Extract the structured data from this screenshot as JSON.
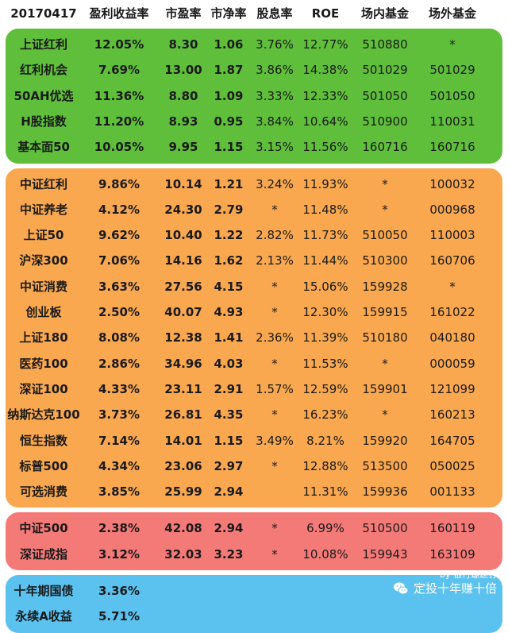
{
  "header": [
    "20170417",
    "盈利收益率",
    "市盈率",
    "市净率",
    "股息率",
    "ROE",
    "场内基金",
    "场外基金"
  ],
  "groups": [
    {
      "color": "#5fbf3a",
      "rows": [
        [
          "上证红利",
          "12.05%",
          "8.30",
          "1.06",
          "3.76%",
          "12.77%",
          "510880",
          "*"
        ],
        [
          "红利机会",
          "7.69%",
          "13.00",
          "1.87",
          "3.86%",
          "14.38%",
          "501029",
          "501029"
        ],
        [
          "50AH优选",
          "11.36%",
          "8.80",
          "1.09",
          "3.33%",
          "12.33%",
          "501050",
          "501050"
        ],
        [
          "H股指数",
          "11.20%",
          "8.93",
          "0.95",
          "3.84%",
          "10.64%",
          "510900",
          "110031"
        ],
        [
          "基本面50",
          "10.05%",
          "9.95",
          "1.15",
          "3.15%",
          "11.56%",
          "160716",
          "160716"
        ]
      ]
    },
    {
      "color": "#f9a84f",
      "rows": [
        [
          "中证红利",
          "9.86%",
          "10.14",
          "1.21",
          "3.24%",
          "11.93%",
          "*",
          "100032"
        ],
        [
          "中证养老",
          "4.12%",
          "24.30",
          "2.79",
          "*",
          "11.48%",
          "*",
          "000968"
        ],
        [
          "上证50",
          "9.62%",
          "10.40",
          "1.22",
          "2.82%",
          "11.73%",
          "510050",
          "110003"
        ],
        [
          "沪深300",
          "7.06%",
          "14.16",
          "1.62",
          "2.13%",
          "11.44%",
          "510300",
          "160706"
        ],
        [
          "中证消费",
          "3.63%",
          "27.56",
          "4.15",
          "*",
          "15.06%",
          "159928",
          "*"
        ],
        [
          "创业板",
          "2.50%",
          "40.07",
          "4.93",
          "*",
          "12.30%",
          "159915",
          "161022"
        ],
        [
          "上证180",
          "8.08%",
          "12.38",
          "1.41",
          "2.36%",
          "11.39%",
          "510180",
          "040180"
        ],
        [
          "医药100",
          "2.86%",
          "34.96",
          "4.03",
          "*",
          "11.53%",
          "*",
          "000059"
        ],
        [
          "深证100",
          "4.33%",
          "23.11",
          "2.91",
          "1.57%",
          "12.59%",
          "159901",
          "121099"
        ],
        [
          "纳斯达克100",
          "3.73%",
          "26.81",
          "4.35",
          "*",
          "16.23%",
          "*",
          "160213"
        ],
        [
          "恒生指数",
          "7.14%",
          "14.01",
          "1.15",
          "3.49%",
          "8.21%",
          "159920",
          "164705"
        ],
        [
          "标普500",
          "4.34%",
          "23.06",
          "2.97",
          "*",
          "12.88%",
          "513500",
          "050025"
        ],
        [
          "可选消费",
          "3.85%",
          "25.99",
          "2.94",
          "",
          "11.31%",
          "159936",
          "001133"
        ]
      ]
    },
    {
      "color": "#f47a78",
      "rows": [
        [
          "中证500",
          "2.38%",
          "42.08",
          "2.94",
          "*",
          "6.99%",
          "510500",
          "160119"
        ],
        [
          "深证成指",
          "3.12%",
          "32.03",
          "3.23",
          "*",
          "10.08%",
          "159943",
          "163109"
        ]
      ]
    },
    {
      "color": "#5bc1ef",
      "rows": [
        [
          "十年期国债",
          "3.36%",
          "",
          "",
          "",
          "",
          "",
          ""
        ],
        [
          "永续A收益",
          "5.71%",
          "",
          "",
          "",
          "",
          "",
          ""
        ]
      ]
    }
  ],
  "watermark": {
    "by": "by 银行螺丝钉",
    "main": "定投十年赚十倍",
    "icon": "wechat-icon"
  }
}
